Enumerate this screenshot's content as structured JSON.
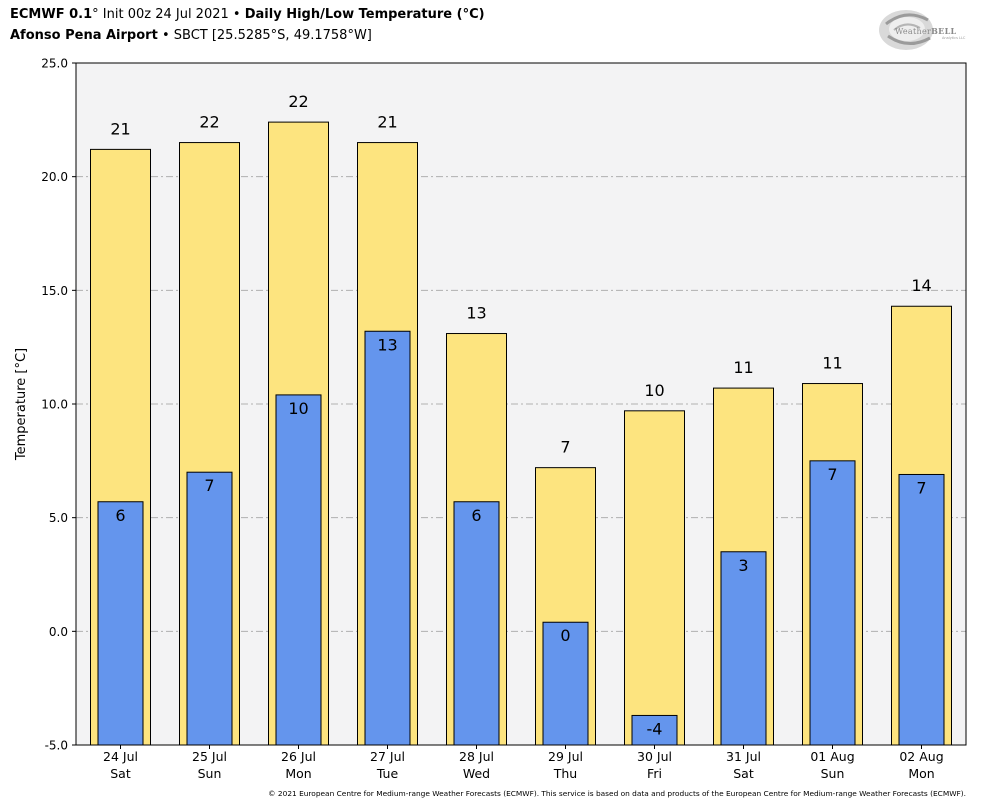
{
  "header": {
    "model": "ECMWF 0.1",
    "degree": "°",
    "init": "Init 00z 24 Jul 2021",
    "bullet": "•",
    "product": "Daily High/Low Temperature (°C)",
    "station_name": "Afonso Pena Airport",
    "station_info": "SBCT [25.5285°S, 49.1758°W]"
  },
  "logo": {
    "text_prefix": "Weather",
    "text_suffix": "BELL",
    "subtext": "Analytics LLC"
  },
  "footer": {
    "copyright": "© 2021 European Centre for Medium-range Weather Forecasts (ECMWF). This service is based on data and products of the European Centre for Medium-range Weather Forecasts (ECMWF)."
  },
  "colors": {
    "high": "#fde47f",
    "low": "#6495ed",
    "plot_bg": "#f3f3f4",
    "grid": "#b0b0b0"
  },
  "chart_data": {
    "type": "bar",
    "title": "Daily High/Low Temperature (°C)",
    "xlabel": "",
    "ylabel": "Temperature [°C]",
    "ylim": [
      -5,
      25
    ],
    "yticks": [
      "-5.0",
      "0.0",
      "5.0",
      "10.0",
      "15.0",
      "20.0",
      "25.0"
    ],
    "grid": true,
    "categories": [
      [
        "24 Jul",
        "Sat"
      ],
      [
        "25 Jul",
        "Sun"
      ],
      [
        "26 Jul",
        "Mon"
      ],
      [
        "27 Jul",
        "Tue"
      ],
      [
        "28 Jul",
        "Wed"
      ],
      [
        "29 Jul",
        "Thu"
      ],
      [
        "30 Jul",
        "Fri"
      ],
      [
        "31 Jul",
        "Sat"
      ],
      [
        "01 Aug",
        "Sun"
      ],
      [
        "02 Aug",
        "Mon"
      ]
    ],
    "series": [
      {
        "name": "High",
        "values": [
          21.2,
          21.5,
          22.4,
          21.5,
          13.1,
          7.2,
          9.7,
          10.7,
          10.9,
          14.3
        ],
        "labels": [
          "21",
          "22",
          "22",
          "21",
          "13",
          "7",
          "10",
          "11",
          "11",
          "14"
        ]
      },
      {
        "name": "Low",
        "values": [
          5.7,
          7.0,
          10.4,
          13.2,
          5.7,
          0.4,
          -3.7,
          3.5,
          7.5,
          6.9
        ],
        "labels": [
          "6",
          "7",
          "10",
          "13",
          "6",
          "0",
          "-4",
          "3",
          "7",
          "7"
        ]
      }
    ]
  }
}
